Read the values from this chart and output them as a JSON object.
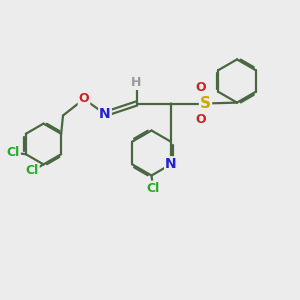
{
  "bg_color": "#ececec",
  "bond_color": "#4a6741",
  "bond_width": 1.6,
  "atom_colors": {
    "H": "#999999",
    "N": "#2222cc",
    "O": "#cc2222",
    "S": "#ccaa00",
    "Cl": "#22aa22"
  },
  "figsize": [
    3.0,
    3.0
  ],
  "dpi": 100
}
